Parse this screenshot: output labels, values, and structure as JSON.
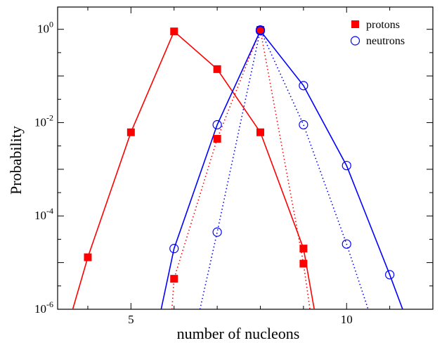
{
  "chart_data": {
    "type": "line",
    "xlabel": "number of nucleons",
    "ylabel": "Probability",
    "xlim": [
      3.3,
      12.0
    ],
    "ylim": [
      1e-06,
      3
    ],
    "yscale": "log",
    "x_ticks": [
      5,
      10
    ],
    "y_ticks": [
      {
        "value": 1e-06,
        "base": "10",
        "exp": "-6"
      },
      {
        "value": 0.0001,
        "base": "10",
        "exp": "-4"
      },
      {
        "value": 0.01,
        "base": "10",
        "exp": "-2"
      },
      {
        "value": 1,
        "base": "10",
        "exp": "0"
      }
    ],
    "grid": false,
    "legend": "top-right",
    "series": [
      {
        "name": "protons",
        "color": "#ff0000",
        "marker": "filled-square",
        "markers_a": [
          [
            4,
            1.3e-05
          ],
          [
            5,
            0.0062
          ],
          [
            6,
            0.9
          ],
          [
            7,
            0.14
          ],
          [
            8,
            0.0062
          ],
          [
            9,
            2e-05
          ]
        ],
        "markers_b": [
          [
            6,
            4.5e-06
          ],
          [
            7,
            0.0045
          ],
          [
            8,
            0.97
          ],
          [
            9,
            9.5e-06
          ]
        ],
        "solid_line": [
          [
            3.65,
            1e-06
          ],
          [
            4,
            1.3e-05
          ],
          [
            5,
            0.0062
          ],
          [
            6,
            0.9
          ],
          [
            7,
            0.14
          ],
          [
            8,
            0.0062
          ],
          [
            9,
            2e-05
          ],
          [
            9.25,
            1e-06
          ]
        ],
        "dotted_line": [
          [
            5.95,
            1e-06
          ],
          [
            6,
            4.5e-06
          ],
          [
            7,
            0.0045
          ],
          [
            8,
            0.97
          ],
          [
            9,
            9.5e-06
          ],
          [
            9.15,
            1e-06
          ]
        ]
      },
      {
        "name": "neutrons",
        "color": "#0000ff",
        "marker": "open-circle",
        "markers_a": [
          [
            6,
            2e-05
          ],
          [
            7,
            0.009
          ],
          [
            8,
            0.93
          ],
          [
            9,
            0.062
          ],
          [
            10,
            0.0012
          ],
          [
            11,
            5.5e-06
          ]
        ],
        "markers_b": [
          [
            7,
            4.5e-05
          ],
          [
            8,
            0.97
          ],
          [
            9,
            0.009
          ],
          [
            10,
            2.5e-05
          ]
        ],
        "solid_line": [
          [
            5.7,
            1e-06
          ],
          [
            6,
            2e-05
          ],
          [
            7,
            0.009
          ],
          [
            8,
            0.93
          ],
          [
            9,
            0.062
          ],
          [
            10,
            0.0012
          ],
          [
            11,
            5.5e-06
          ],
          [
            11.3,
            1e-06
          ]
        ],
        "dotted_line": [
          [
            6.6,
            1e-06
          ],
          [
            7,
            4.5e-05
          ],
          [
            8,
            0.97
          ],
          [
            9,
            0.009
          ],
          [
            10,
            2.5e-05
          ],
          [
            10.5,
            1e-06
          ]
        ]
      }
    ]
  }
}
